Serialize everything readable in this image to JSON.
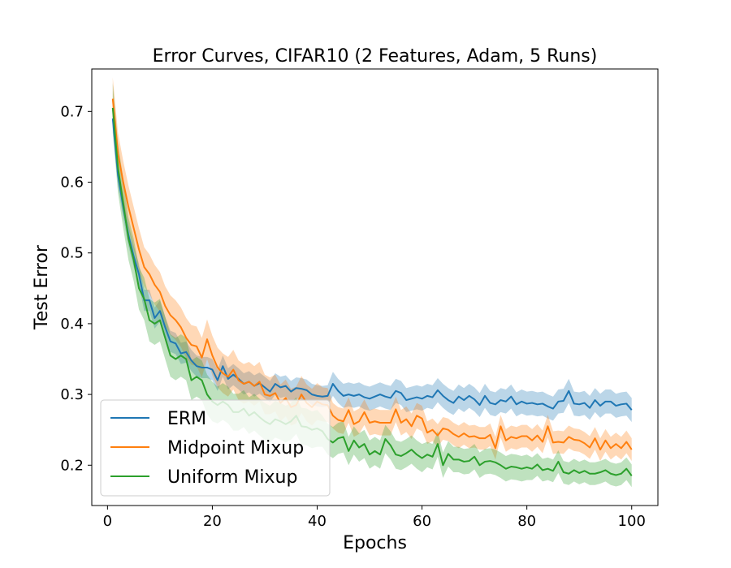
{
  "chart_data": {
    "type": "line",
    "title": "Error Curves, CIFAR10 (2 Features, Adam, 5 Runs)",
    "xlabel": "Epochs",
    "ylabel": "Test Error",
    "xlim": [
      -3,
      105
    ],
    "ylim": [
      0.143,
      0.76
    ],
    "xticks": [
      0,
      20,
      40,
      60,
      80,
      100
    ],
    "yticks": [
      0.2,
      0.3,
      0.4,
      0.5,
      0.6,
      0.7
    ],
    "xtick_labels": [
      "0",
      "20",
      "40",
      "60",
      "80",
      "100"
    ],
    "ytick_labels": [
      "0.2",
      "0.3",
      "0.4",
      "0.5",
      "0.6",
      "0.7"
    ],
    "grid": false,
    "legend_position": "lower-left",
    "x": [
      1,
      2,
      3,
      4,
      5,
      6,
      7,
      8,
      9,
      10,
      11,
      12,
      13,
      14,
      15,
      16,
      17,
      18,
      19,
      20,
      21,
      22,
      23,
      24,
      25,
      26,
      27,
      28,
      29,
      30,
      31,
      32,
      33,
      34,
      35,
      36,
      37,
      38,
      39,
      40,
      41,
      42,
      43,
      44,
      45,
      46,
      47,
      48,
      49,
      50,
      51,
      52,
      53,
      54,
      55,
      56,
      57,
      58,
      59,
      60,
      61,
      62,
      63,
      64,
      65,
      66,
      67,
      68,
      69,
      70,
      71,
      72,
      73,
      74,
      75,
      76,
      77,
      78,
      79,
      80,
      81,
      82,
      83,
      84,
      85,
      86,
      87,
      88,
      89,
      90,
      91,
      92,
      93,
      94,
      95,
      96,
      97,
      98,
      99,
      100
    ],
    "series": [
      {
        "name": "ERM",
        "color": "#1f77b4",
        "values": [
          0.69,
          0.61,
          0.565,
          0.525,
          0.495,
          0.47,
          0.433,
          0.433,
          0.408,
          0.418,
          0.395,
          0.375,
          0.372,
          0.358,
          0.36,
          0.348,
          0.34,
          0.338,
          0.338,
          0.335,
          0.32,
          0.34,
          0.322,
          0.328,
          0.322,
          0.315,
          0.318,
          0.312,
          0.316,
          0.31,
          0.304,
          0.315,
          0.31,
          0.312,
          0.304,
          0.309,
          0.308,
          0.306,
          0.3,
          0.298,
          0.297,
          0.298,
          0.315,
          0.305,
          0.298,
          0.3,
          0.298,
          0.3,
          0.296,
          0.294,
          0.297,
          0.3,
          0.297,
          0.295,
          0.305,
          0.302,
          0.292,
          0.294,
          0.296,
          0.294,
          0.298,
          0.296,
          0.306,
          0.298,
          0.292,
          0.288,
          0.297,
          0.292,
          0.298,
          0.293,
          0.285,
          0.298,
          0.288,
          0.286,
          0.292,
          0.29,
          0.297,
          0.286,
          0.29,
          0.287,
          0.288,
          0.286,
          0.287,
          0.283,
          0.28,
          0.29,
          0.291,
          0.305,
          0.287,
          0.286,
          0.288,
          0.281,
          0.292,
          0.284,
          0.29,
          0.29,
          0.284,
          0.286,
          0.287,
          0.278
        ],
        "lower": [
          0.675,
          0.595,
          0.55,
          0.51,
          0.48,
          0.455,
          0.418,
          0.418,
          0.393,
          0.403,
          0.38,
          0.36,
          0.357,
          0.343,
          0.345,
          0.333,
          0.325,
          0.323,
          0.323,
          0.32,
          0.305,
          0.325,
          0.307,
          0.313,
          0.307,
          0.3,
          0.303,
          0.297,
          0.301,
          0.295,
          0.289,
          0.3,
          0.295,
          0.297,
          0.289,
          0.294,
          0.293,
          0.291,
          0.285,
          0.283,
          0.282,
          0.283,
          0.298,
          0.288,
          0.281,
          0.283,
          0.281,
          0.283,
          0.279,
          0.277,
          0.28,
          0.283,
          0.28,
          0.278,
          0.288,
          0.285,
          0.275,
          0.277,
          0.279,
          0.277,
          0.281,
          0.279,
          0.289,
          0.281,
          0.275,
          0.271,
          0.28,
          0.275,
          0.281,
          0.276,
          0.268,
          0.281,
          0.271,
          0.269,
          0.275,
          0.273,
          0.28,
          0.269,
          0.273,
          0.27,
          0.271,
          0.269,
          0.27,
          0.266,
          0.263,
          0.273,
          0.274,
          0.288,
          0.27,
          0.269,
          0.271,
          0.264,
          0.275,
          0.267,
          0.273,
          0.273,
          0.267,
          0.269,
          0.27,
          0.261
        ],
        "upper": [
          0.705,
          0.625,
          0.58,
          0.54,
          0.51,
          0.485,
          0.448,
          0.448,
          0.423,
          0.433,
          0.41,
          0.39,
          0.387,
          0.373,
          0.375,
          0.363,
          0.355,
          0.353,
          0.353,
          0.35,
          0.335,
          0.355,
          0.337,
          0.343,
          0.337,
          0.33,
          0.333,
          0.327,
          0.331,
          0.325,
          0.319,
          0.33,
          0.325,
          0.327,
          0.319,
          0.324,
          0.323,
          0.321,
          0.315,
          0.313,
          0.312,
          0.313,
          0.332,
          0.322,
          0.315,
          0.317,
          0.315,
          0.317,
          0.313,
          0.311,
          0.314,
          0.317,
          0.314,
          0.312,
          0.322,
          0.319,
          0.309,
          0.311,
          0.313,
          0.311,
          0.315,
          0.313,
          0.323,
          0.315,
          0.309,
          0.305,
          0.314,
          0.309,
          0.315,
          0.31,
          0.302,
          0.315,
          0.305,
          0.303,
          0.309,
          0.307,
          0.314,
          0.303,
          0.307,
          0.304,
          0.305,
          0.303,
          0.304,
          0.3,
          0.297,
          0.307,
          0.308,
          0.322,
          0.304,
          0.303,
          0.305,
          0.298,
          0.309,
          0.301,
          0.307,
          0.307,
          0.301,
          0.303,
          0.304,
          0.295
        ]
      },
      {
        "name": "Midpoint Mixup",
        "color": "#ff7f0e",
        "values": [
          0.718,
          0.64,
          0.6,
          0.565,
          0.535,
          0.505,
          0.48,
          0.47,
          0.455,
          0.445,
          0.425,
          0.412,
          0.405,
          0.395,
          0.38,
          0.37,
          0.368,
          0.352,
          0.378,
          0.355,
          0.338,
          0.33,
          0.325,
          0.335,
          0.32,
          0.315,
          0.318,
          0.312,
          0.318,
          0.3,
          0.298,
          0.302,
          0.288,
          0.295,
          0.282,
          0.285,
          0.3,
          0.288,
          0.282,
          0.29,
          0.286,
          0.285,
          0.27,
          0.264,
          0.262,
          0.278,
          0.258,
          0.262,
          0.275,
          0.26,
          0.262,
          0.26,
          0.26,
          0.26,
          0.279,
          0.26,
          0.265,
          0.255,
          0.27,
          0.266,
          0.246,
          0.25,
          0.242,
          0.252,
          0.25,
          0.244,
          0.24,
          0.245,
          0.24,
          0.241,
          0.238,
          0.238,
          0.243,
          0.224,
          0.255,
          0.235,
          0.24,
          0.238,
          0.241,
          0.241,
          0.235,
          0.242,
          0.233,
          0.255,
          0.232,
          0.233,
          0.232,
          0.24,
          0.236,
          0.235,
          0.231,
          0.225,
          0.238,
          0.222,
          0.235,
          0.224,
          0.23,
          0.224,
          0.233,
          0.222
        ],
        "lower": [
          0.688,
          0.61,
          0.57,
          0.535,
          0.505,
          0.475,
          0.452,
          0.442,
          0.427,
          0.417,
          0.397,
          0.384,
          0.377,
          0.367,
          0.352,
          0.342,
          0.34,
          0.324,
          0.35,
          0.327,
          0.31,
          0.302,
          0.297,
          0.307,
          0.292,
          0.287,
          0.29,
          0.284,
          0.29,
          0.272,
          0.272,
          0.276,
          0.262,
          0.269,
          0.256,
          0.259,
          0.274,
          0.262,
          0.256,
          0.264,
          0.262,
          0.261,
          0.252,
          0.246,
          0.244,
          0.26,
          0.24,
          0.244,
          0.257,
          0.242,
          0.244,
          0.242,
          0.242,
          0.242,
          0.261,
          0.242,
          0.247,
          0.237,
          0.252,
          0.248,
          0.23,
          0.234,
          0.226,
          0.236,
          0.234,
          0.228,
          0.224,
          0.229,
          0.224,
          0.225,
          0.222,
          0.222,
          0.227,
          0.208,
          0.239,
          0.219,
          0.224,
          0.222,
          0.225,
          0.225,
          0.219,
          0.226,
          0.217,
          0.239,
          0.216,
          0.217,
          0.216,
          0.224,
          0.22,
          0.219,
          0.215,
          0.209,
          0.222,
          0.206,
          0.219,
          0.208,
          0.214,
          0.208,
          0.217,
          0.206
        ],
        "upper": [
          0.748,
          0.67,
          0.63,
          0.595,
          0.565,
          0.535,
          0.508,
          0.498,
          0.483,
          0.473,
          0.453,
          0.44,
          0.433,
          0.423,
          0.408,
          0.398,
          0.396,
          0.38,
          0.406,
          0.383,
          0.366,
          0.358,
          0.353,
          0.363,
          0.348,
          0.343,
          0.346,
          0.34,
          0.346,
          0.328,
          0.324,
          0.328,
          0.314,
          0.321,
          0.308,
          0.311,
          0.326,
          0.314,
          0.308,
          0.316,
          0.31,
          0.309,
          0.288,
          0.282,
          0.28,
          0.296,
          0.276,
          0.28,
          0.293,
          0.278,
          0.28,
          0.278,
          0.278,
          0.278,
          0.297,
          0.278,
          0.283,
          0.273,
          0.288,
          0.284,
          0.262,
          0.266,
          0.258,
          0.268,
          0.266,
          0.26,
          0.256,
          0.261,
          0.256,
          0.257,
          0.254,
          0.254,
          0.259,
          0.24,
          0.271,
          0.251,
          0.256,
          0.254,
          0.257,
          0.257,
          0.251,
          0.258,
          0.249,
          0.271,
          0.248,
          0.249,
          0.248,
          0.256,
          0.252,
          0.251,
          0.247,
          0.241,
          0.254,
          0.238,
          0.251,
          0.24,
          0.246,
          0.24,
          0.249,
          0.238
        ]
      },
      {
        "name": "Uniform Mixup",
        "color": "#2ca02c",
        "values": [
          0.705,
          0.62,
          0.57,
          0.52,
          0.49,
          0.45,
          0.435,
          0.405,
          0.4,
          0.405,
          0.38,
          0.355,
          0.35,
          0.355,
          0.35,
          0.32,
          0.325,
          0.32,
          0.3,
          0.29,
          0.285,
          0.29,
          0.285,
          0.275,
          0.275,
          0.28,
          0.27,
          0.275,
          0.268,
          0.262,
          0.258,
          0.265,
          0.262,
          0.258,
          0.262,
          0.27,
          0.255,
          0.254,
          0.25,
          0.252,
          0.248,
          0.237,
          0.232,
          0.238,
          0.24,
          0.22,
          0.235,
          0.225,
          0.23,
          0.215,
          0.22,
          0.215,
          0.237,
          0.228,
          0.215,
          0.213,
          0.217,
          0.222,
          0.215,
          0.21,
          0.215,
          0.212,
          0.23,
          0.2,
          0.216,
          0.208,
          0.208,
          0.205,
          0.206,
          0.212,
          0.2,
          0.205,
          0.206,
          0.204,
          0.2,
          0.195,
          0.198,
          0.197,
          0.195,
          0.197,
          0.195,
          0.201,
          0.193,
          0.195,
          0.192,
          0.205,
          0.19,
          0.188,
          0.193,
          0.189,
          0.192,
          0.188,
          0.188,
          0.19,
          0.193,
          0.188,
          0.186,
          0.188,
          0.195,
          0.185
        ],
        "lower": [
          0.67,
          0.585,
          0.535,
          0.49,
          0.46,
          0.42,
          0.405,
          0.375,
          0.37,
          0.375,
          0.35,
          0.325,
          0.32,
          0.325,
          0.32,
          0.292,
          0.297,
          0.292,
          0.272,
          0.262,
          0.259,
          0.264,
          0.259,
          0.249,
          0.249,
          0.254,
          0.244,
          0.249,
          0.242,
          0.236,
          0.232,
          0.239,
          0.236,
          0.232,
          0.236,
          0.244,
          0.229,
          0.228,
          0.224,
          0.226,
          0.226,
          0.215,
          0.21,
          0.216,
          0.218,
          0.2,
          0.215,
          0.205,
          0.21,
          0.195,
          0.2,
          0.195,
          0.217,
          0.208,
          0.195,
          0.193,
          0.197,
          0.202,
          0.195,
          0.19,
          0.197,
          0.194,
          0.212,
          0.182,
          0.198,
          0.19,
          0.19,
          0.187,
          0.188,
          0.194,
          0.182,
          0.187,
          0.188,
          0.186,
          0.182,
          0.177,
          0.18,
          0.179,
          0.177,
          0.179,
          0.179,
          0.185,
          0.177,
          0.179,
          0.176,
          0.189,
          0.174,
          0.172,
          0.177,
          0.173,
          0.176,
          0.172,
          0.172,
          0.174,
          0.177,
          0.172,
          0.17,
          0.172,
          0.179,
          0.169
        ],
        "upper": [
          0.74,
          0.655,
          0.605,
          0.55,
          0.52,
          0.48,
          0.465,
          0.435,
          0.43,
          0.435,
          0.41,
          0.385,
          0.38,
          0.385,
          0.38,
          0.348,
          0.353,
          0.348,
          0.328,
          0.318,
          0.311,
          0.316,
          0.311,
          0.301,
          0.301,
          0.306,
          0.296,
          0.301,
          0.294,
          0.288,
          0.284,
          0.291,
          0.288,
          0.284,
          0.288,
          0.296,
          0.281,
          0.28,
          0.276,
          0.278,
          0.27,
          0.259,
          0.254,
          0.26,
          0.262,
          0.24,
          0.255,
          0.245,
          0.25,
          0.235,
          0.24,
          0.235,
          0.257,
          0.248,
          0.235,
          0.233,
          0.237,
          0.242,
          0.235,
          0.23,
          0.233,
          0.23,
          0.248,
          0.218,
          0.234,
          0.226,
          0.226,
          0.223,
          0.224,
          0.23,
          0.218,
          0.223,
          0.224,
          0.222,
          0.218,
          0.213,
          0.216,
          0.215,
          0.213,
          0.215,
          0.211,
          0.217,
          0.209,
          0.211,
          0.208,
          0.221,
          0.206,
          0.204,
          0.209,
          0.205,
          0.208,
          0.204,
          0.204,
          0.206,
          0.209,
          0.204,
          0.202,
          0.204,
          0.211,
          0.201
        ]
      }
    ]
  }
}
